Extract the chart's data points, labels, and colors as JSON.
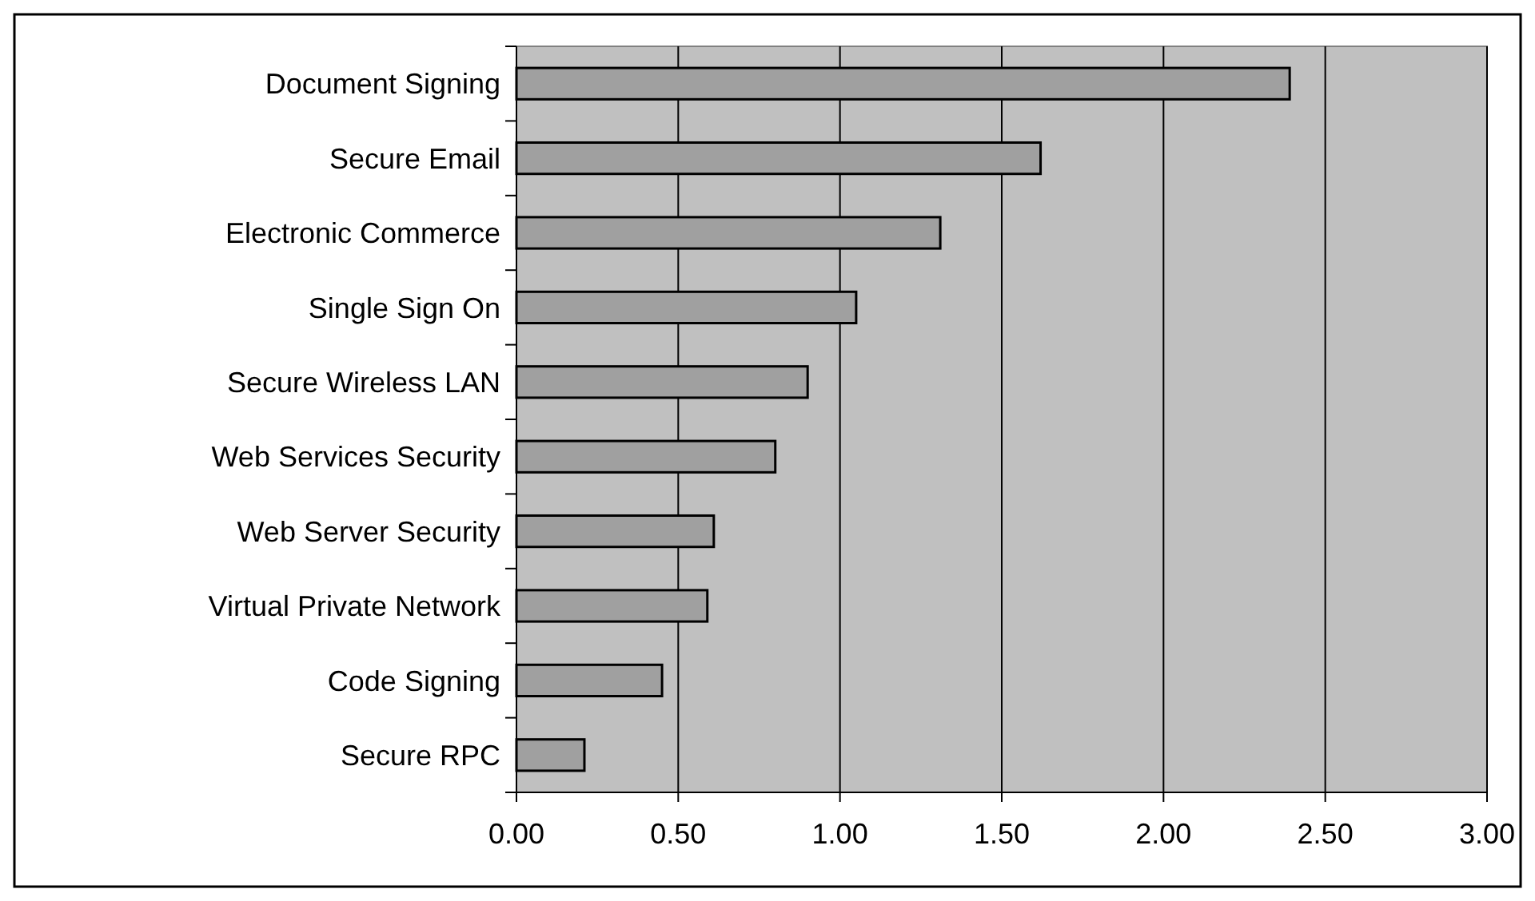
{
  "chart_data": {
    "type": "bar",
    "orientation": "horizontal",
    "categories": [
      "Document Signing",
      "Secure Email",
      "Electronic Commerce",
      "Single Sign On",
      "Secure Wireless LAN",
      "Web Services Security",
      "Web Server Security",
      "Virtual Private Network",
      "Code Signing",
      "Secure RPC"
    ],
    "values": [
      2.39,
      1.62,
      1.31,
      1.05,
      0.9,
      0.8,
      0.61,
      0.59,
      0.45,
      0.21
    ],
    "color": "#a0a0a0",
    "xlim": [
      0,
      3
    ],
    "xticks": [
      {
        "value": 0,
        "label": "0.00"
      },
      {
        "value": 0.5,
        "label": "0.50"
      },
      {
        "value": 1,
        "label": "1.00"
      },
      {
        "value": 1.5,
        "label": "1.50"
      },
      {
        "value": 2,
        "label": "2.00"
      },
      {
        "value": 2.5,
        "label": "2.50"
      },
      {
        "value": 3,
        "label": "3.00"
      }
    ],
    "grid": "x"
  }
}
